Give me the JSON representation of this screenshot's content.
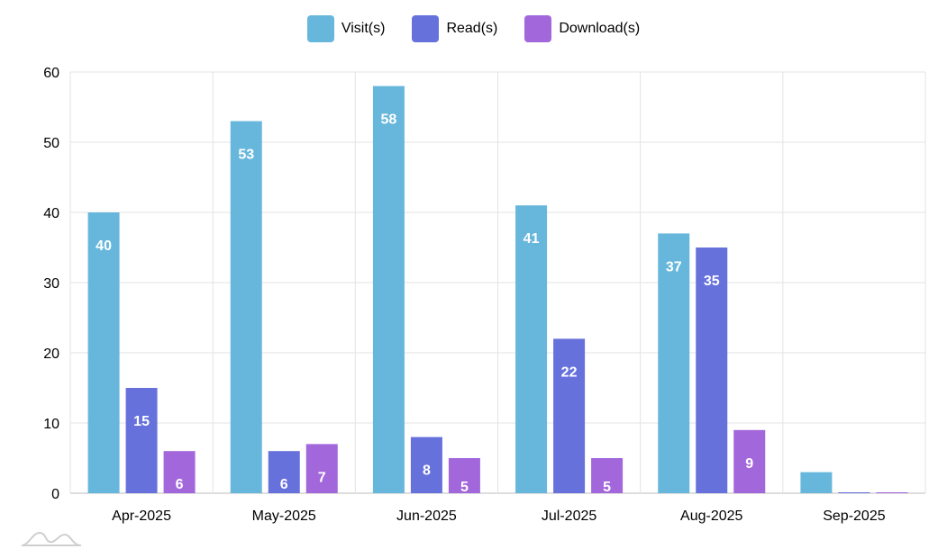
{
  "chart_data": {
    "type": "bar",
    "categories": [
      "Apr-2025",
      "May-2025",
      "Jun-2025",
      "Jul-2025",
      "Aug-2025",
      "Sep-2025"
    ],
    "series": [
      {
        "name": "Visit(s)",
        "color": "#67b7dc",
        "values": [
          40,
          53,
          58,
          41,
          37,
          3
        ]
      },
      {
        "name": "Read(s)",
        "color": "#6771dc",
        "values": [
          15,
          6,
          8,
          22,
          35,
          0
        ]
      },
      {
        "name": "Download(s)",
        "color": "#a367dc",
        "values": [
          6,
          7,
          5,
          5,
          9,
          0
        ]
      }
    ],
    "ylim": [
      0,
      60
    ],
    "yticks": [
      0,
      10,
      20,
      30,
      40,
      50,
      60
    ],
    "grid": true,
    "legend_position": "top-center",
    "data_label_color": "#ffffff"
  }
}
